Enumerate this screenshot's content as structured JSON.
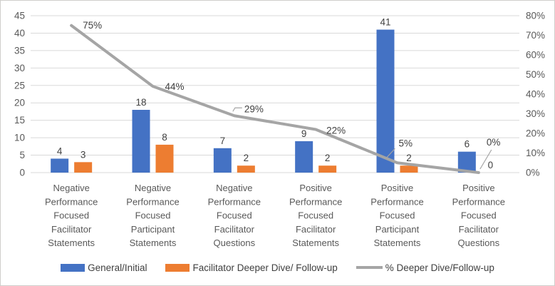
{
  "chart_data": {
    "type": "combo-bar-line",
    "title": "",
    "categories": [
      "Negative Performance Focused Facilitator Statements",
      "Negative Performance Focused Participant Statements",
      "Negative Performance Focused Facilitator Questions",
      "Positive Performance Focused Facilitator Statements",
      "Positive Performance Focused Participant Statements",
      "Positive Performance Focused Facilitator Questions"
    ],
    "series": [
      {
        "name": "General/Initial",
        "type": "bar",
        "axis": "left",
        "color": "#4472C4",
        "values": [
          4,
          18,
          7,
          9,
          41,
          6
        ]
      },
      {
        "name": "Facilitator Deeper Dive/ Follow-up",
        "type": "bar",
        "axis": "left",
        "color": "#ED7D31",
        "values": [
          3,
          8,
          2,
          2,
          2,
          0
        ]
      },
      {
        "name": "% Deeper Dive/Follow-up",
        "type": "line",
        "axis": "right",
        "color": "#A5A5A5",
        "values": [
          75,
          44,
          29,
          22,
          5,
          0
        ],
        "point_labels": [
          "75%",
          "44%",
          "29%",
          "22%",
          "5%",
          "0%"
        ]
      }
    ],
    "left_axis": {
      "min": 0,
      "max": 45,
      "step": 5,
      "ticks": [
        "0",
        "5",
        "10",
        "15",
        "20",
        "25",
        "30",
        "35",
        "40",
        "45"
      ]
    },
    "right_axis": {
      "min": 0,
      "max": 80,
      "step": 10,
      "ticks": [
        "0%",
        "10%",
        "20%",
        "30%",
        "40%",
        "50%",
        "60%",
        "70%",
        "80%"
      ]
    },
    "grid": true,
    "legend_position": "bottom",
    "colors": {
      "grid": "#D9D9D9",
      "axis_text": "#595959",
      "category_text": "#595959",
      "data_label": "#404040",
      "legend_text": "#404040",
      "leader_line": "#A5A5A5"
    }
  }
}
